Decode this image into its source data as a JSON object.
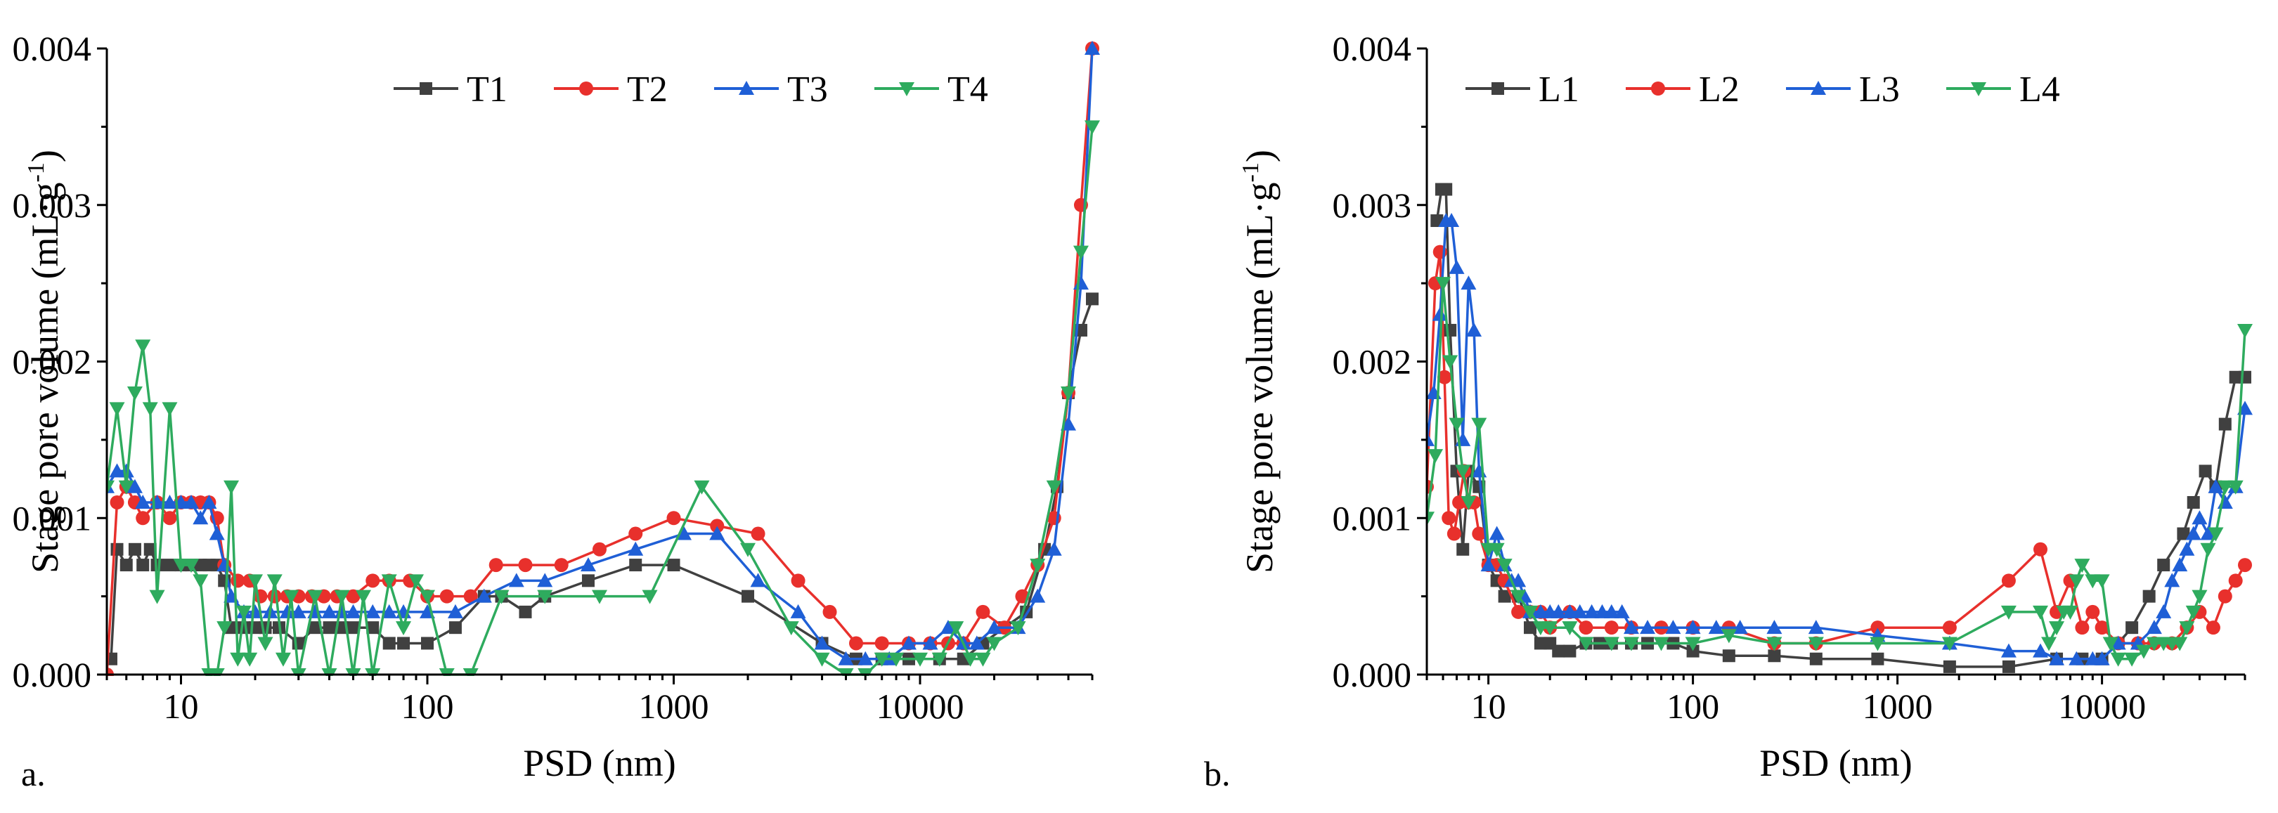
{
  "chart_data": [
    {
      "type": "line",
      "panel_label": "a.",
      "xlabel": "PSD (nm)",
      "ylabel": "Stage pore volume (mL·g",
      "ylabel_sup": "-1",
      "ylabel_close": ")",
      "xscale": "log",
      "xlim": [
        5,
        50000
      ],
      "ylim": [
        0,
        0.004
      ],
      "yticks": [
        "0.000",
        "0.001",
        "0.002",
        "0.003",
        "0.004"
      ],
      "xticks": [
        "10",
        "100",
        "1000",
        "10000"
      ],
      "legend_position": "top-right",
      "series": [
        {
          "name": "T1",
          "color": "#404040",
          "marker": "square",
          "x": [
            5.2,
            5.5,
            6,
            6.5,
            7,
            7.5,
            8,
            9,
            10,
            11,
            12,
            13,
            14,
            15,
            16,
            18,
            20,
            22,
            25,
            30,
            35,
            40,
            45,
            50,
            60,
            70,
            80,
            100,
            130,
            170,
            200,
            250,
            300,
            450,
            700,
            1000,
            2000,
            4000,
            5500,
            7000,
            9000,
            12000,
            15000,
            18000,
            22000,
            27000,
            32000,
            36000,
            40000,
            45000,
            50000
          ],
          "y": [
            0.0001,
            0.0008,
            0.0007,
            0.0008,
            0.0007,
            0.0008,
            0.0007,
            0.0007,
            0.0007,
            0.0007,
            0.0007,
            0.0007,
            0.0007,
            0.0006,
            0.0003,
            0.0003,
            0.0003,
            0.0003,
            0.0003,
            0.0002,
            0.0003,
            0.0003,
            0.0003,
            0.0003,
            0.0003,
            0.0002,
            0.0002,
            0.0002,
            0.0003,
            0.0005,
            0.0005,
            0.0004,
            0.0005,
            0.0006,
            0.0007,
            0.0007,
            0.0005,
            0.0002,
            0.0001,
            0.0001,
            0.0001,
            0.0001,
            0.0001,
            0.0002,
            0.0003,
            0.0004,
            0.0008,
            0.0012,
            0.0018,
            0.0022,
            0.0024
          ]
        },
        {
          "name": "T2",
          "color": "#e8302c",
          "marker": "circle",
          "x": [
            5,
            5.5,
            6,
            6.5,
            7,
            8,
            9,
            10,
            11,
            12,
            13,
            14,
            15,
            17,
            19,
            21,
            24,
            27,
            30,
            34,
            38,
            43,
            50,
            60,
            70,
            85,
            100,
            120,
            150,
            190,
            250,
            350,
            500,
            700,
            1000,
            1500,
            2200,
            3200,
            4300,
            5500,
            7000,
            9000,
            11000,
            13000,
            15000,
            18000,
            22000,
            26000,
            30000,
            35000,
            40000,
            45000,
            50000
          ],
          "y": [
            0.0,
            0.0011,
            0.0012,
            0.0011,
            0.001,
            0.0011,
            0.001,
            0.0011,
            0.0011,
            0.0011,
            0.0011,
            0.001,
            0.0007,
            0.0006,
            0.0006,
            0.0005,
            0.0005,
            0.0005,
            0.0005,
            0.0005,
            0.0005,
            0.0005,
            0.0005,
            0.0006,
            0.0006,
            0.0006,
            0.0005,
            0.0005,
            0.0005,
            0.0007,
            0.0007,
            0.0007,
            0.0008,
            0.0009,
            0.001,
            0.00095,
            0.0009,
            0.0006,
            0.0004,
            0.0002,
            0.0002,
            0.0002,
            0.0002,
            0.0002,
            0.0002,
            0.0004,
            0.0003,
            0.0005,
            0.0007,
            0.001,
            0.0018,
            0.003,
            0.004
          ]
        },
        {
          "name": "T3",
          "color": "#1f5fd6",
          "marker": "triangle-up",
          "x": [
            5,
            5.5,
            6,
            6.5,
            7,
            8,
            9,
            10,
            11,
            12,
            13,
            14,
            15,
            16,
            18,
            20,
            23,
            27,
            30,
            35,
            40,
            45,
            50,
            60,
            70,
            80,
            100,
            130,
            170,
            230,
            300,
            450,
            700,
            1100,
            1500,
            2200,
            3200,
            4000,
            5000,
            6000,
            7500,
            9000,
            11000,
            13000,
            15000,
            17000,
            20000,
            25000,
            30000,
            35000,
            40000,
            45000,
            50000
          ],
          "y": [
            0.0012,
            0.0013,
            0.0013,
            0.0012,
            0.0011,
            0.0011,
            0.0011,
            0.0011,
            0.0011,
            0.001,
            0.0011,
            0.0009,
            0.0007,
            0.0005,
            0.0004,
            0.0004,
            0.0004,
            0.0004,
            0.0004,
            0.0004,
            0.0004,
            0.0004,
            0.0004,
            0.0004,
            0.0004,
            0.0004,
            0.0004,
            0.0004,
            0.0005,
            0.0006,
            0.0006,
            0.0007,
            0.0008,
            0.0009,
            0.0009,
            0.0006,
            0.0004,
            0.0002,
            0.0001,
            0.0001,
            0.0001,
            0.0002,
            0.0002,
            0.0003,
            0.0002,
            0.0002,
            0.0003,
            0.0003,
            0.0005,
            0.0008,
            0.0016,
            0.0025,
            0.004
          ]
        },
        {
          "name": "T4",
          "color": "#2eab5e",
          "marker": "triangle-down",
          "x": [
            5,
            5.5,
            6,
            6.5,
            7,
            7.5,
            8,
            9,
            10,
            11,
            12,
            13,
            14,
            15,
            16,
            17,
            18,
            19,
            20,
            22,
            24,
            26,
            28,
            30,
            35,
            40,
            45,
            50,
            55,
            60,
            70,
            80,
            90,
            100,
            120,
            150,
            200,
            300,
            500,
            800,
            1300,
            2000,
            3000,
            4000,
            5000,
            6000,
            7000,
            8000,
            10000,
            12000,
            14000,
            16000,
            18000,
            20000,
            25000,
            30000,
            35000,
            40000,
            45000,
            50000
          ],
          "y": [
            0.0012,
            0.0017,
            0.0012,
            0.0018,
            0.0021,
            0.0017,
            0.0005,
            0.0017,
            0.0007,
            0.0007,
            0.0006,
            0.0,
            0.0,
            0.0003,
            0.0012,
            0.0001,
            0.0004,
            0.0001,
            0.0006,
            0.0002,
            0.0006,
            0.0001,
            0.0005,
            0.0,
            0.0005,
            0.0,
            0.0005,
            0.0,
            0.0005,
            0.0,
            0.0006,
            0.0003,
            0.0006,
            0.0005,
            0.0,
            0.0,
            0.0005,
            0.0005,
            0.0005,
            0.0005,
            0.0012,
            0.0008,
            0.0003,
            0.0001,
            0.0,
            0.0,
            0.0001,
            0.0001,
            0.0001,
            0.0001,
            0.0003,
            0.0001,
            0.0001,
            0.0002,
            0.0003,
            0.0007,
            0.0012,
            0.0018,
            0.0027,
            0.0035
          ]
        }
      ]
    },
    {
      "type": "line",
      "panel_label": "b.",
      "xlabel": "PSD (nm)",
      "ylabel": "Stage pore volume (mL·g",
      "ylabel_sup": "-1",
      "ylabel_close": ")",
      "xscale": "log",
      "xlim": [
        5,
        50000
      ],
      "ylim": [
        0,
        0.004
      ],
      "yticks": [
        "0.000",
        "0.001",
        "0.002",
        "0.003",
        "0.004"
      ],
      "xticks": [
        "10",
        "100",
        "1000",
        "10000"
      ],
      "legend_position": "top-left",
      "series": [
        {
          "name": "L1",
          "color": "#404040",
          "marker": "square",
          "x": [
            5.6,
            5.9,
            6.2,
            6.5,
            7,
            7.5,
            8,
            9,
            10,
            11,
            12,
            14,
            16,
            18,
            20,
            22,
            25,
            30,
            35,
            40,
            50,
            60,
            80,
            100,
            150,
            250,
            400,
            800,
            1800,
            3500,
            6000,
            8000,
            10000,
            12000,
            14000,
            17000,
            20000,
            25000,
            28000,
            32000,
            36000,
            40000,
            45000,
            50000
          ],
          "y": [
            0.0029,
            0.0031,
            0.0031,
            0.0022,
            0.0013,
            0.0008,
            0.0013,
            0.0012,
            0.0007,
            0.0006,
            0.0005,
            0.0005,
            0.0003,
            0.0002,
            0.0002,
            0.00015,
            0.00015,
            0.0002,
            0.0002,
            0.0002,
            0.0002,
            0.0002,
            0.0002,
            0.00015,
            0.00012,
            0.00012,
            0.0001,
            0.0001,
            5e-05,
            5e-05,
            0.0001,
            0.0001,
            0.0001,
            0.0002,
            0.0003,
            0.0005,
            0.0007,
            0.0009,
            0.0011,
            0.0013,
            0.0012,
            0.0016,
            0.0019,
            0.0019
          ]
        },
        {
          "name": "L2",
          "color": "#e8302c",
          "marker": "circle",
          "x": [
            5,
            5.5,
            5.8,
            6.1,
            6.4,
            6.8,
            7.2,
            7.6,
            8,
            8.5,
            9,
            10,
            11,
            12,
            14,
            16,
            18,
            20,
            25,
            30,
            40,
            50,
            70,
            100,
            150,
            250,
            400,
            800,
            1800,
            3500,
            5000,
            6000,
            7000,
            8000,
            9000,
            10000,
            12000,
            15000,
            18000,
            22000,
            26000,
            30000,
            35000,
            40000,
            45000,
            50000
          ],
          "y": [
            0.0012,
            0.0025,
            0.0027,
            0.0019,
            0.001,
            0.0009,
            0.0011,
            0.0013,
            0.0011,
            0.0011,
            0.0009,
            0.0007,
            0.0007,
            0.0006,
            0.0004,
            0.0004,
            0.0004,
            0.0003,
            0.0004,
            0.0003,
            0.0003,
            0.0003,
            0.0003,
            0.0003,
            0.0003,
            0.0002,
            0.0002,
            0.0003,
            0.0003,
            0.0006,
            0.0008,
            0.0004,
            0.0006,
            0.0003,
            0.0004,
            0.0003,
            0.0002,
            0.0002,
            0.0002,
            0.0002,
            0.0003,
            0.0004,
            0.0003,
            0.0005,
            0.0006,
            0.0007
          ]
        },
        {
          "name": "L3",
          "color": "#1f5fd6",
          "marker": "triangle-up",
          "x": [
            5,
            5.4,
            5.8,
            6.2,
            6.6,
            7,
            7.5,
            8,
            8.5,
            9,
            10,
            11,
            12,
            13,
            14,
            15,
            16,
            18,
            20,
            22,
            25,
            28,
            32,
            36,
            40,
            45,
            50,
            60,
            80,
            100,
            130,
            170,
            250,
            400,
            800,
            1800,
            3500,
            5000,
            6000,
            7500,
            9000,
            10000,
            12000,
            15000,
            18000,
            20000,
            22000,
            24000,
            26000,
            28000,
            30000,
            33000,
            36000,
            40000,
            45000,
            50000
          ],
          "y": [
            0.0015,
            0.0018,
            0.0023,
            0.0029,
            0.0029,
            0.0026,
            0.0015,
            0.0025,
            0.0022,
            0.0013,
            0.0007,
            0.0009,
            0.0007,
            0.0006,
            0.0006,
            0.0005,
            0.0004,
            0.0004,
            0.0004,
            0.0004,
            0.0004,
            0.0004,
            0.0004,
            0.0004,
            0.0004,
            0.0004,
            0.0003,
            0.0003,
            0.0003,
            0.0003,
            0.0003,
            0.0003,
            0.0003,
            0.0003,
            0.00025,
            0.0002,
            0.00015,
            0.00015,
            0.0001,
            0.0001,
            0.0001,
            0.0001,
            0.0002,
            0.0002,
            0.0003,
            0.0004,
            0.0006,
            0.0007,
            0.0008,
            0.0009,
            0.001,
            0.0009,
            0.0012,
            0.0011,
            0.0012,
            0.0017
          ]
        },
        {
          "name": "L4",
          "color": "#2eab5e",
          "marker": "triangle-down",
          "x": [
            5,
            5.5,
            6,
            6.5,
            7,
            7.5,
            8,
            9,
            10,
            11,
            12,
            14,
            16,
            18,
            20,
            25,
            30,
            40,
            50,
            70,
            100,
            150,
            250,
            400,
            800,
            1800,
            3500,
            5000,
            5500,
            6000,
            6500,
            7000,
            7500,
            8000,
            9000,
            10000,
            11000,
            12000,
            14000,
            16000,
            18000,
            20000,
            22000,
            24000,
            26000,
            28000,
            30000,
            33000,
            36000,
            40000,
            45000,
            50000
          ],
          "y": [
            0.001,
            0.0014,
            0.0025,
            0.002,
            0.0016,
            0.0013,
            0.0011,
            0.0016,
            0.0008,
            0.0008,
            0.0007,
            0.0005,
            0.0004,
            0.0003,
            0.0003,
            0.0003,
            0.0002,
            0.0002,
            0.0002,
            0.0002,
            0.0002,
            0.00025,
            0.0002,
            0.0002,
            0.0002,
            0.0002,
            0.0004,
            0.0004,
            0.0002,
            0.0003,
            0.0004,
            0.0004,
            0.0006,
            0.0007,
            0.0006,
            0.0006,
            0.0002,
            0.0001,
            0.0001,
            0.00015,
            0.0002,
            0.0002,
            0.0002,
            0.0002,
            0.0003,
            0.0004,
            0.0005,
            0.0008,
            0.0009,
            0.0012,
            0.0012,
            0.0022
          ]
        }
      ]
    }
  ]
}
